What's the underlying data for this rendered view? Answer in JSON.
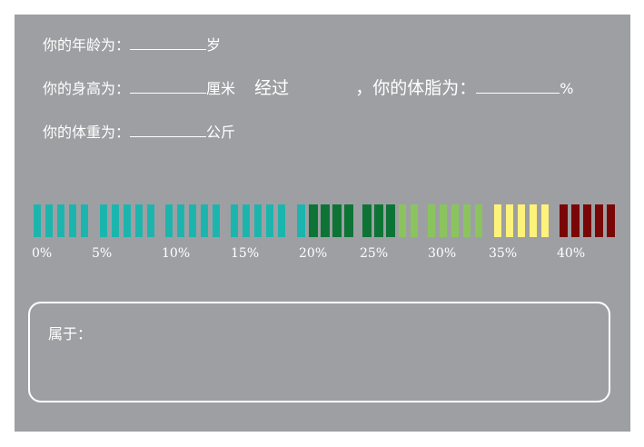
{
  "form": {
    "age_label": "你的年龄为：",
    "age_unit": "岁",
    "height_label": "你的身高为：",
    "height_unit": "厘米",
    "after_text": "经过",
    "fat_prefix": "，你的体脂为：",
    "fat_unit": "%",
    "weight_label": "你的体重为：",
    "weight_unit": "公斤"
  },
  "scale": {
    "colors": {
      "teal": "#1cb5ad",
      "dark_green": "#0e7436",
      "light_green": "#8bc45f",
      "yellow": "#fdf27a",
      "dark_red": "#7a0707"
    },
    "ticks": [
      "0%",
      "5%",
      "10%",
      "15%",
      "20%",
      "25%",
      "30%",
      "35%",
      "40%"
    ]
  },
  "result": {
    "label": "属于："
  }
}
